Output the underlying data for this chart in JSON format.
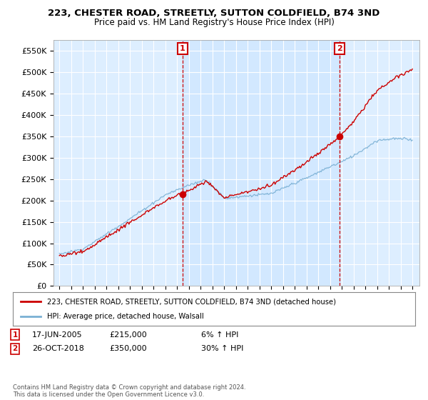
{
  "title": "223, CHESTER ROAD, STREETLY, SUTTON COLDFIELD, B74 3ND",
  "subtitle": "Price paid vs. HM Land Registry's House Price Index (HPI)",
  "ylabel_ticks": [
    "£0",
    "£50K",
    "£100K",
    "£150K",
    "£200K",
    "£250K",
    "£300K",
    "£350K",
    "£400K",
    "£450K",
    "£500K",
    "£550K"
  ],
  "ytick_values": [
    0,
    50000,
    100000,
    150000,
    200000,
    250000,
    300000,
    350000,
    400000,
    450000,
    500000,
    550000
  ],
  "ylim": [
    0,
    575000
  ],
  "legend_line1": "223, CHESTER ROAD, STREETLY, SUTTON COLDFIELD, B74 3ND (detached house)",
  "legend_line2": "HPI: Average price, detached house, Walsall",
  "annotation1_label": "1",
  "annotation1_date": "17-JUN-2005",
  "annotation1_price": "£215,000",
  "annotation1_hpi": "6% ↑ HPI",
  "annotation2_label": "2",
  "annotation2_date": "26-OCT-2018",
  "annotation2_price": "£350,000",
  "annotation2_hpi": "30% ↑ HPI",
  "footer": "Contains HM Land Registry data © Crown copyright and database right 2024.\nThis data is licensed under the Open Government Licence v3.0.",
  "house_color": "#cc0000",
  "hpi_color": "#7ab0d4",
  "annotation_color": "#cc0000",
  "bg_color": "#ffffff",
  "plot_bg_color": "#ddeeff",
  "grid_color": "#ffffff",
  "purchase1_year": 2005.46,
  "purchase1_price": 215000,
  "purchase2_year": 2018.82,
  "purchase2_price": 350000
}
